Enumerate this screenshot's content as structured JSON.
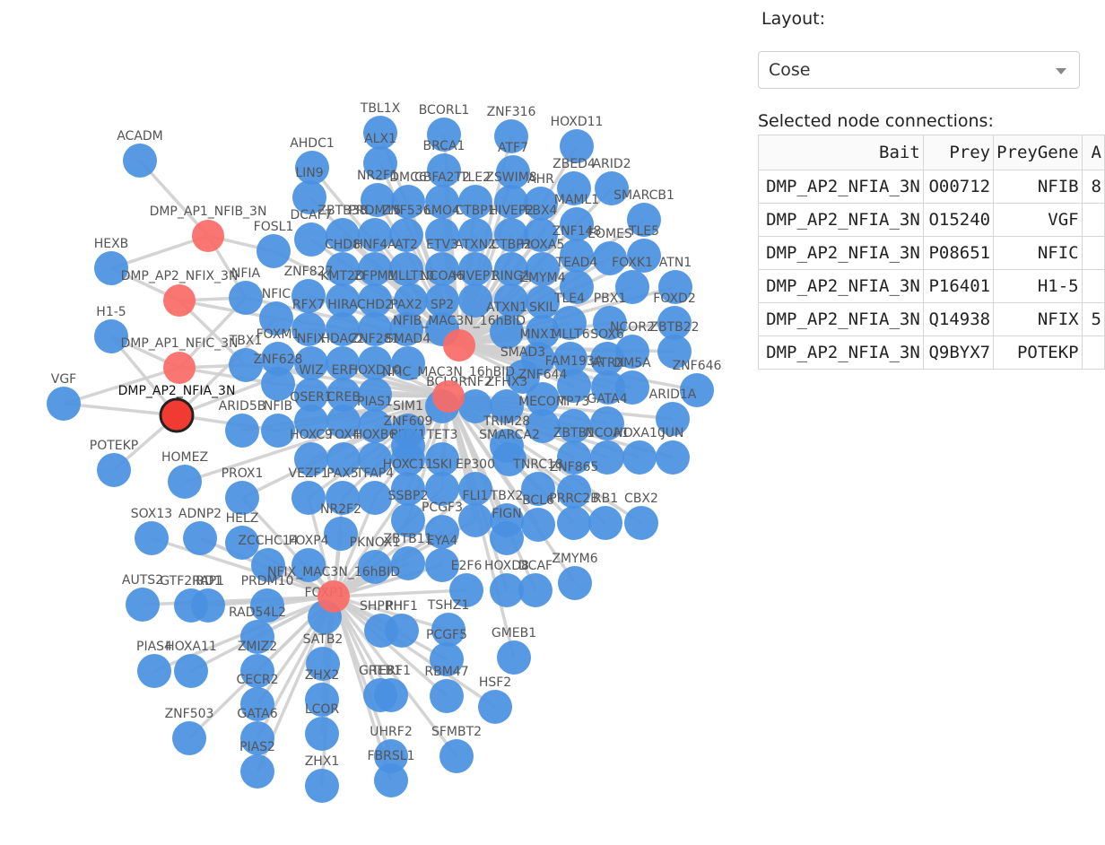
{
  "panel": {
    "layout_label": "Layout:",
    "layout_value": "Cose",
    "connections_title": "Selected node connections:"
  },
  "table": {
    "headers": [
      "Bait",
      "Prey",
      "PreyGene",
      "A"
    ],
    "rows": [
      [
        "DMP_AP2_NFIA_3N",
        "O00712",
        "NFIB",
        "8"
      ],
      [
        "DMP_AP2_NFIA_3N",
        "O15240",
        "VGF",
        ""
      ],
      [
        "DMP_AP2_NFIA_3N",
        "P08651",
        "NFIC",
        ""
      ],
      [
        "DMP_AP2_NFIA_3N",
        "P16401",
        "H1-5",
        ""
      ],
      [
        "DMP_AP2_NFIA_3N",
        "Q14938",
        "NFIX",
        "5"
      ],
      [
        "DMP_AP2_NFIA_3N",
        "Q9BYX7",
        "POTEKP",
        ""
      ]
    ]
  },
  "colors": {
    "prey_node": "#4a90e2",
    "bait_node": "#fa6a66",
    "selected_node": "#f03a32",
    "edge": "#cfcfcf"
  },
  "graph": {
    "selected": "DMP_AP2_NFIA_3N",
    "baits": [
      "DMP_AP1_NFIB_3N",
      "DMP_AP2_NFIX_3N",
      "DMP_AP1_NFIC_3N",
      "DMP_AP2_NFIA_3N",
      "NFIB_MAC3N_16hBID",
      "NFIC_MAC3N_16hBID",
      "NFIX_MAC3N_16hBID"
    ],
    "preys": [
      "TBL1X",
      "BCORL1",
      "ZNF316",
      "HOXD11",
      "ACADM",
      "AHDC1",
      "ALX1",
      "BRCA1",
      "ATF7",
      "ZBED4",
      "ARID2",
      "LIN9",
      "NR2F1",
      "DMC6",
      "CBFA2T2",
      "TLE2",
      "ZSWIM8",
      "AHR",
      "SMARCB1",
      "MAML1",
      "DCAF7",
      "ZBTB38",
      "PRDM15",
      "ZNF536",
      "LMO4",
      "CTBP1",
      "HIVEP2",
      "EBX4",
      "ZNF148",
      "EOMES",
      "TLE5",
      "FOSL1",
      "CHD8",
      "HNF4A",
      "AT2",
      "ETV3",
      "ATXN2",
      "CTBP2",
      "HOXA5",
      "TEAD4",
      "FOXK1",
      "ATN1",
      "HEXB",
      "ZNF827",
      "KMT2D",
      "ZFPM1",
      "MLLT10",
      "NCOA6",
      "HIVEP1",
      "RING1",
      "ZMYM4",
      "TLE4",
      "PBX1",
      "FOXD2",
      "NFIA",
      "NFIC",
      "RFX7",
      "HIRA",
      "CHD2",
      "PAX2",
      "SP2",
      "ATXN1",
      "SKIL",
      "NCOR2",
      "ZBTB22",
      "H1-5",
      "FOXM1",
      "NFIX",
      "HDAC2",
      "ZNF281",
      "SMAD4",
      "MNX1",
      "MLLT6",
      "SOX6",
      "TBX1",
      "ZNF628",
      "FAM193A",
      "ATRX",
      "DM5A",
      "ZNF646",
      "VGF",
      "WIZ",
      "ERF",
      "HOXD10",
      "NFIB",
      "SMAD3",
      "ZNF644",
      "ARID1A",
      "QSER1",
      "CREB",
      "BCL9",
      "PIAS1",
      "RNF2",
      "ZFHX3",
      "MECOM",
      "TP73",
      "GATA4",
      "SIM1",
      "ARID5B",
      "POTEKP",
      "HOXC9",
      "TOX4",
      "HOXB6",
      "PITX1",
      "TET3",
      "TRIM28",
      "SMARCA2",
      "ZBTB1",
      "NCOA1",
      "HOXA10",
      "JUN",
      "HOMEZ",
      "VEZF1",
      "ZNF609",
      "PAX5",
      "TFAP4",
      "HOXC11",
      "SKI",
      "EP300",
      "TNRC18",
      "ZNF865",
      "PROX1",
      "SSBP2",
      "FLI1",
      "TBX2",
      "BCL6",
      "PRRC2B",
      "RB1",
      "CBX2",
      "SOX13",
      "ADNP2",
      "HELZ",
      "NR2F2",
      "PCGF3",
      "FIGN",
      "ZCCHC14",
      "FOXP4",
      "PKNOX1",
      "ZBTB11",
      "EYA4",
      "E2F6",
      "HOXD8",
      "DCAF",
      "ZMYM6",
      "AUTS2",
      "GTF2IRD1",
      "RAP1",
      "PRDM10",
      "FOXP1",
      "SHPRH",
      "PHF1",
      "TSHZ1",
      "RAD54L2",
      "GMEB1",
      "PIAS4",
      "HOXA11",
      "SATB2",
      "PCGF5",
      "ZMIZ2",
      "GREB1",
      "TERF1",
      "RBM47",
      "HSF2",
      "CECR2",
      "ZHX2",
      "ZNF503",
      "GATA6",
      "LCOR",
      "UHRF2",
      "SFMBT2",
      "PIAS2",
      "ZHX1",
      "FBRSL1"
    ]
  }
}
